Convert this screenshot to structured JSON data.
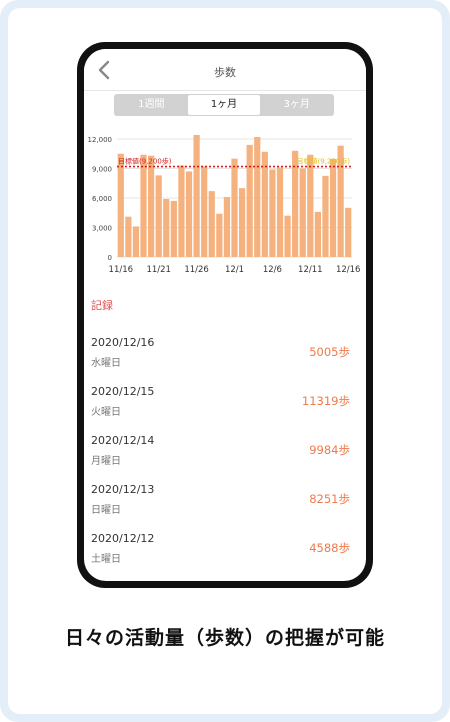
{
  "nav": {
    "title": "歩数",
    "back_icon": "chevron-left-icon"
  },
  "tabs": [
    {
      "label": "1週間",
      "active": false
    },
    {
      "label": "1ヶ月",
      "active": true
    },
    {
      "label": "3ヶ月",
      "active": false
    }
  ],
  "chart_data": {
    "type": "bar",
    "title": "",
    "xlabel": "",
    "ylabel": "",
    "ylim": [
      0,
      12000
    ],
    "yticks": [
      "12,000",
      "9,000",
      "6,000",
      "3,000",
      "0"
    ],
    "xtick_labels": [
      "11/16",
      "11/21",
      "11/26",
      "12/1",
      "12/6",
      "12/11",
      "12/16"
    ],
    "categories": [
      "11/16",
      "11/17",
      "11/18",
      "11/19",
      "11/20",
      "11/21",
      "11/22",
      "11/23",
      "11/24",
      "11/25",
      "11/26",
      "11/27",
      "11/28",
      "11/29",
      "11/30",
      "12/1",
      "12/2",
      "12/3",
      "12/4",
      "12/5",
      "12/6",
      "12/7",
      "12/8",
      "12/9",
      "12/10",
      "12/11",
      "12/12",
      "12/13",
      "12/14",
      "12/15",
      "12/16"
    ],
    "values": [
      10500,
      4100,
      3100,
      10400,
      10300,
      8300,
      5900,
      5700,
      9300,
      8700,
      13000,
      9200,
      6700,
      4400,
      6100,
      10000,
      7000,
      11400,
      12200,
      10700,
      8900,
      9100,
      4200,
      10800,
      9000,
      10400,
      4588,
      8251,
      9984,
      11319,
      5005
    ],
    "goal": {
      "value": 9200,
      "label": "目標値(9,200歩)",
      "color": "#d42020"
    },
    "bar_color": "#f5b27f",
    "grid": true
  },
  "records_label": "記録",
  "records": [
    {
      "date": "2020/12/16",
      "day": "水曜日",
      "steps": "5005歩"
    },
    {
      "date": "2020/12/15",
      "day": "火曜日",
      "steps": "11319歩"
    },
    {
      "date": "2020/12/14",
      "day": "月曜日",
      "steps": "9984歩"
    },
    {
      "date": "2020/12/13",
      "day": "日曜日",
      "steps": "8251歩"
    },
    {
      "date": "2020/12/12",
      "day": "土曜日",
      "steps": "4588歩"
    }
  ],
  "caption": "日々の活動量（歩数）の把握が可能"
}
